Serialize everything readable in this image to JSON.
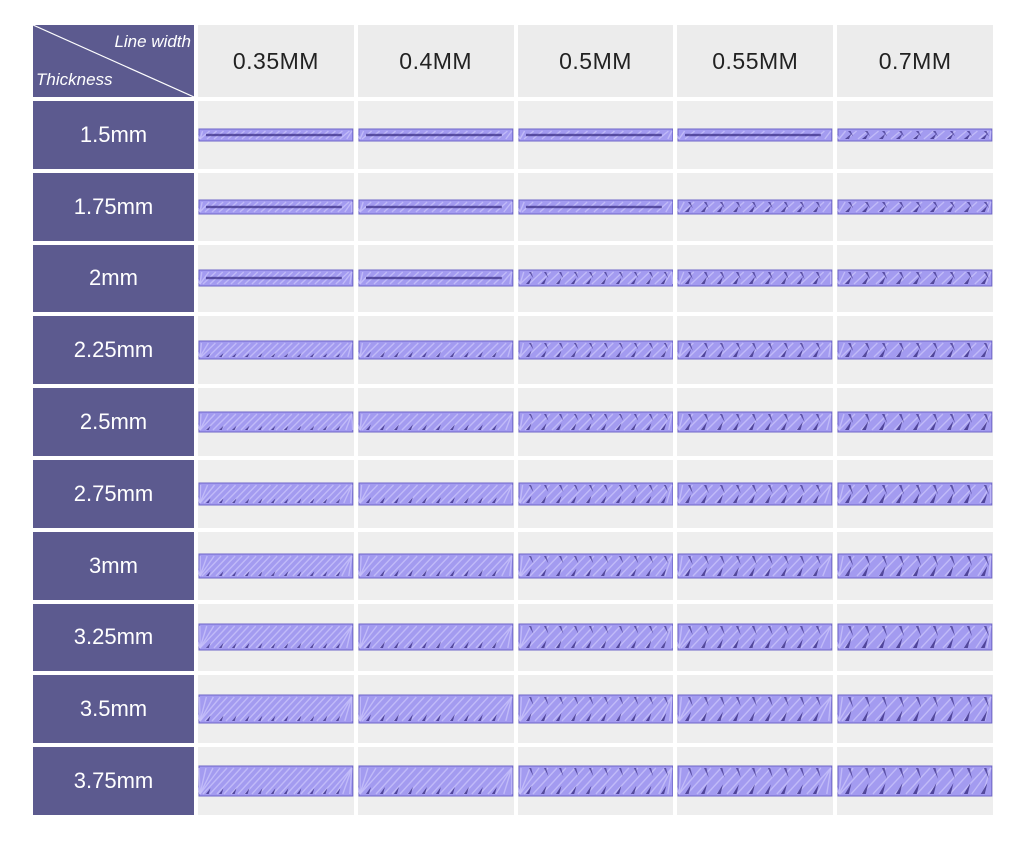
{
  "header": {
    "corner_top_label": "Line width",
    "corner_bottom_label": "Thickness"
  },
  "columns": [
    "0.35MM",
    "0.4MM",
    "0.5MM",
    "0.55MM",
    "0.7MM"
  ],
  "rows": [
    "1.5mm",
    "1.75mm",
    "2mm",
    "2.25mm",
    "2.5mm",
    "2.75mm",
    "3mm",
    "3.25mm",
    "3.5mm",
    "3.75mm"
  ],
  "colors": {
    "header_bg": "#5c5a8f",
    "sample_fill": "#a39bf0",
    "sample_dark": "#3b2f85",
    "cell_bg": "#eeeeee"
  }
}
